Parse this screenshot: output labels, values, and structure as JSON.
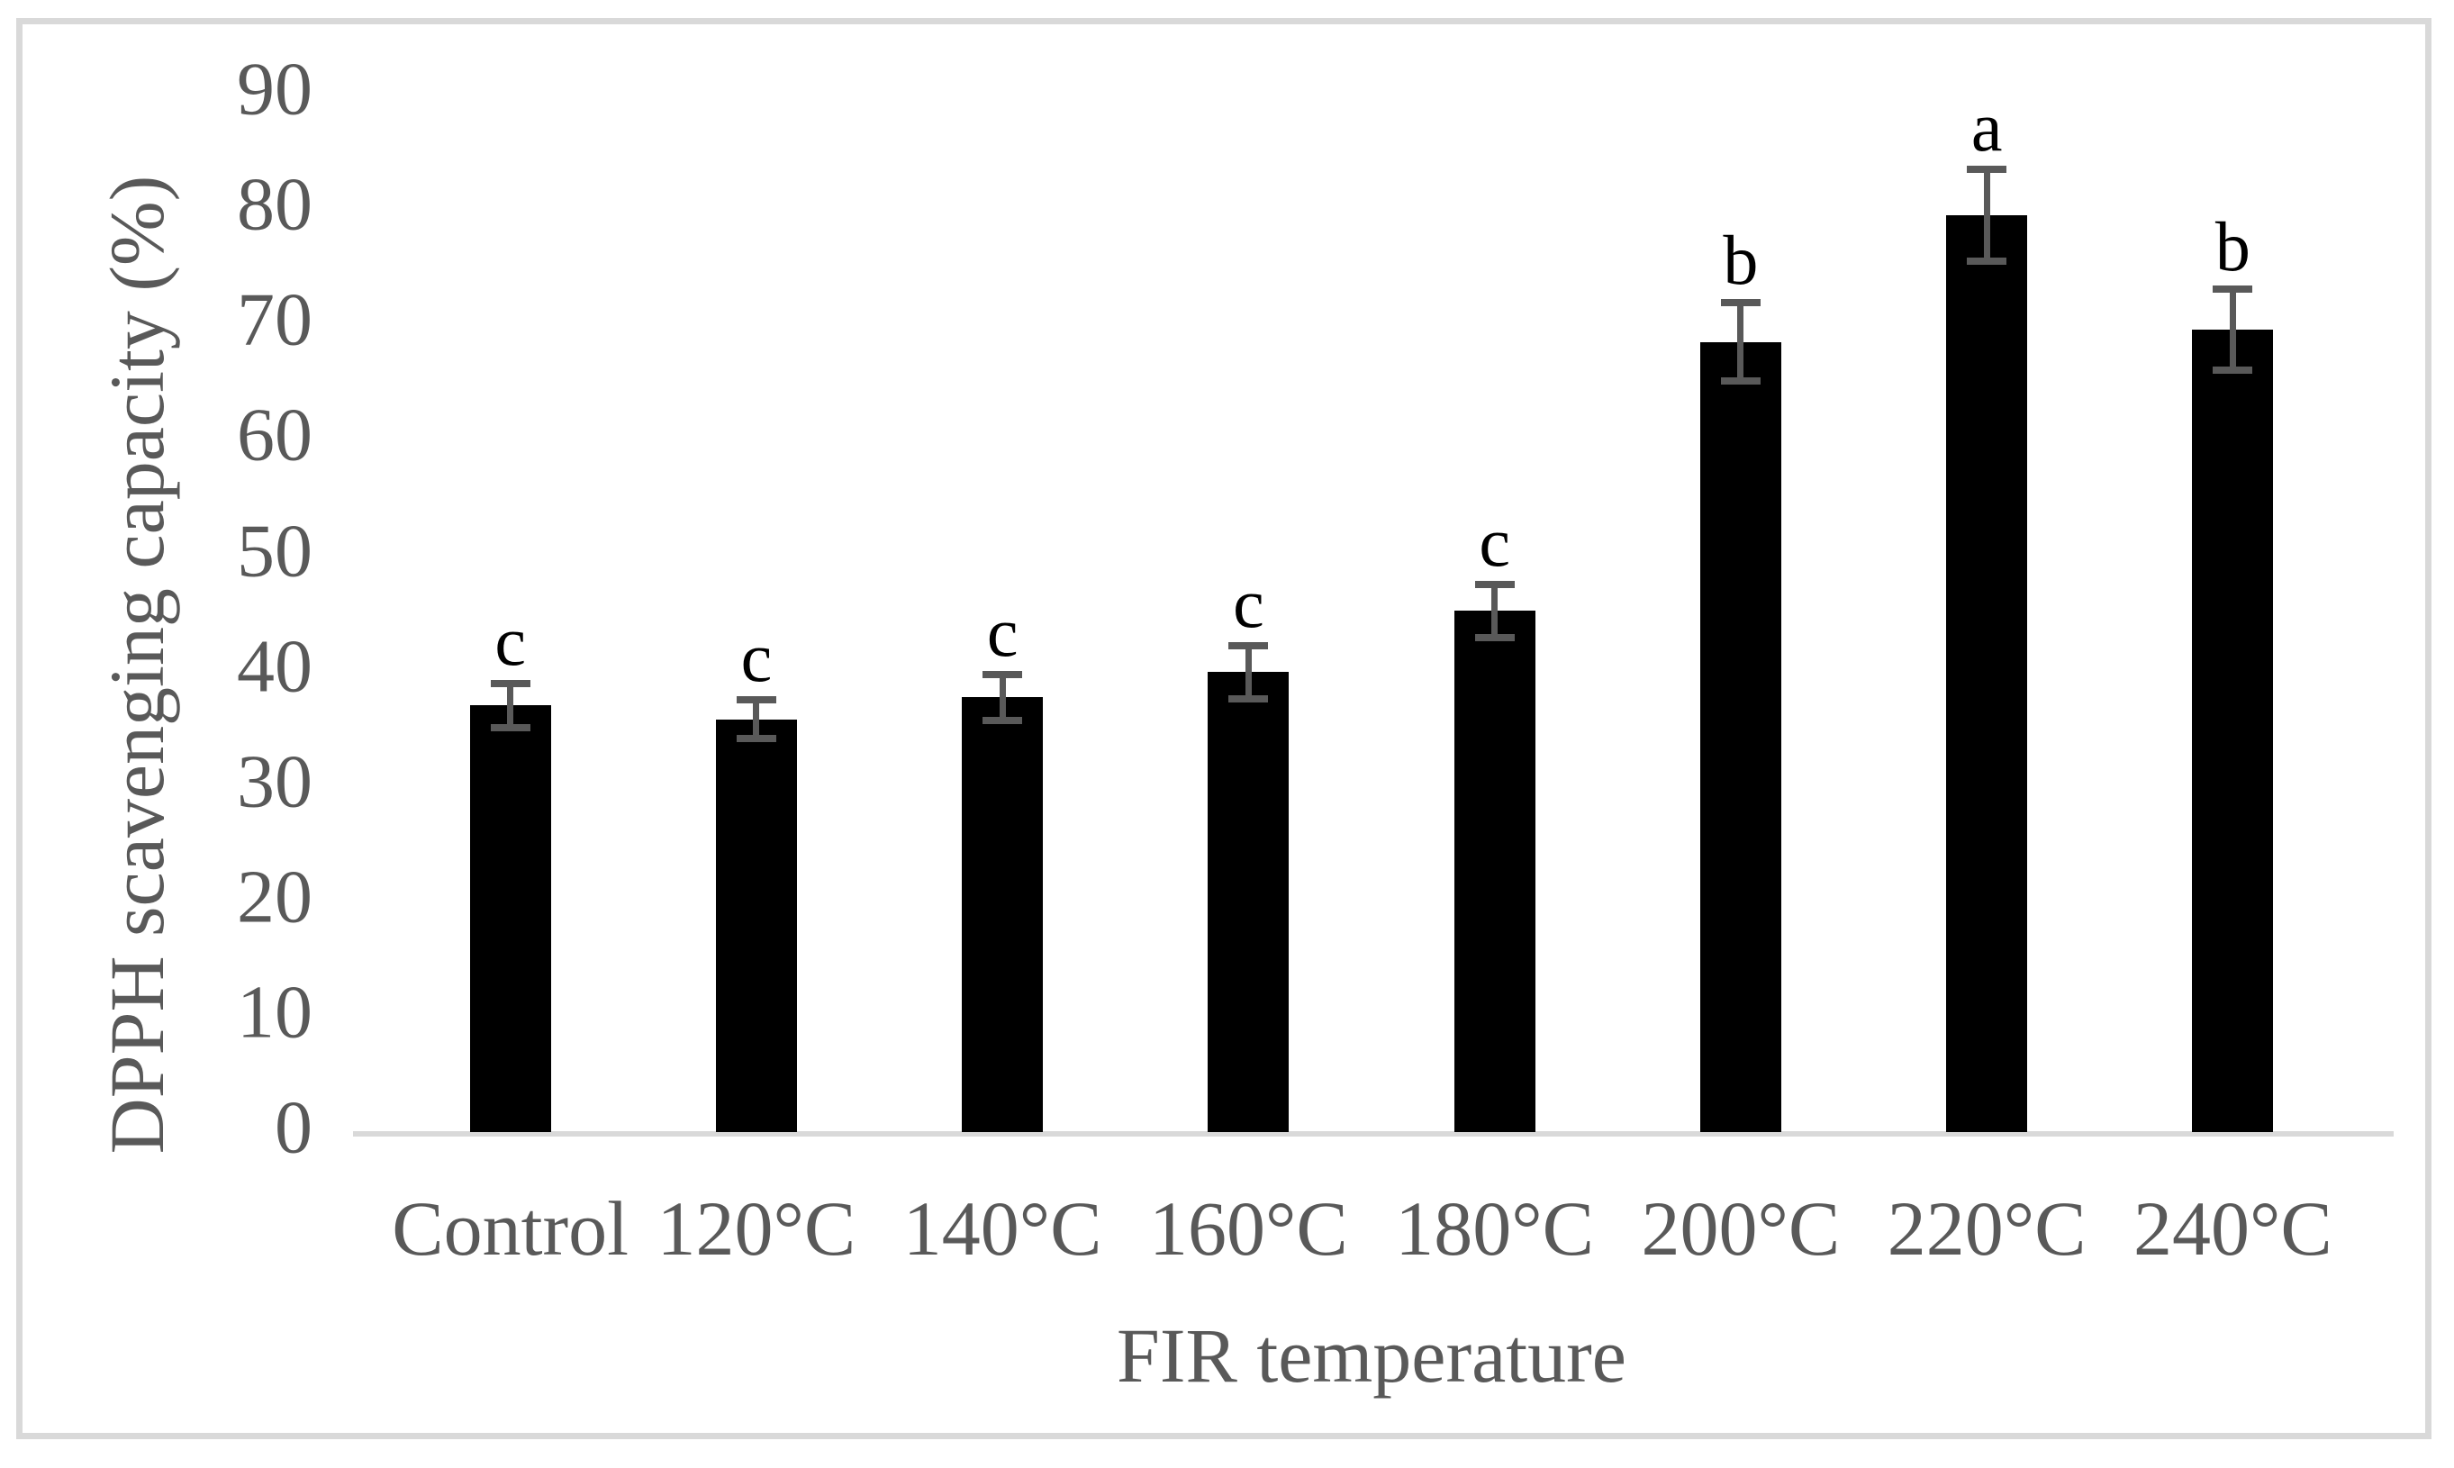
{
  "figure": {
    "background": "#ffffff",
    "border_color": "#d9d9d9"
  },
  "chart_data": {
    "type": "bar",
    "title": "",
    "xlabel": "FIR temperature",
    "ylabel": "DPPH scavenging capacity (%)",
    "categories": [
      "Control",
      "120°C",
      "140°C",
      "160°C",
      "180°C",
      "200°C",
      "220°C",
      "240°C"
    ],
    "values": [
      36.9,
      35.7,
      37.6,
      39.8,
      45.1,
      68.4,
      79.4,
      69.5
    ],
    "error_bars": [
      1.9,
      1.7,
      2.0,
      2.3,
      2.3,
      3.4,
      4.0,
      3.5
    ],
    "significance_letters": [
      "c",
      "c",
      "c",
      "c",
      "c",
      "b",
      "a",
      "b"
    ],
    "y_ticks": [
      0,
      10,
      20,
      30,
      40,
      50,
      60,
      70,
      80,
      90
    ],
    "ylim": [
      0,
      90
    ],
    "grid": false,
    "legend": null,
    "bar_color": "#000000",
    "error_bar_color": "#595959",
    "axis_line_color": "#d9d9d9",
    "label_color": "#595959",
    "letter_color": "#000000"
  }
}
